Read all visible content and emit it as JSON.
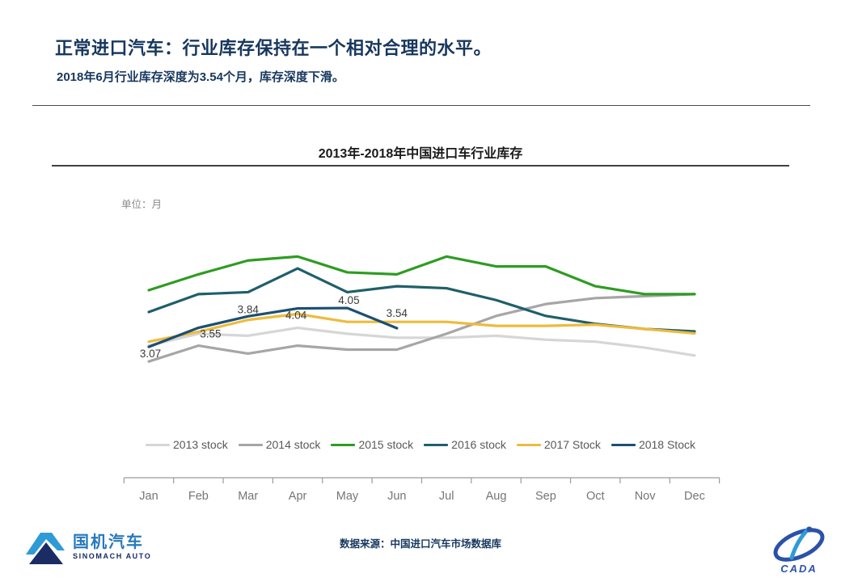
{
  "header": {
    "title": "正常进口汽车：行业库存保持在一个相对合理的水平。",
    "subtitle": "2018年6月行业库存深度为3.54个月，库存深度下滑。"
  },
  "chart_data": {
    "type": "line",
    "title": "2013年-2018年中国进口车行业库存",
    "unit_label": "单位：月",
    "categories": [
      "Jan",
      "Feb",
      "Mar",
      "Apr",
      "May",
      "Jun",
      "Jul",
      "Aug",
      "Sep",
      "Oct",
      "Nov",
      "Dec"
    ],
    "series": [
      {
        "name": "2013 stock",
        "color": "#D6D6D6",
        "values": [
          3.1,
          3.4,
          3.35,
          3.55,
          3.4,
          3.3,
          3.3,
          3.35,
          3.25,
          3.2,
          3.05,
          2.85
        ]
      },
      {
        "name": "2014 stock",
        "color": "#A6A6A6",
        "values": [
          2.7,
          3.1,
          2.9,
          3.1,
          3.0,
          3.0,
          3.4,
          3.85,
          4.15,
          4.3,
          4.35,
          4.4
        ]
      },
      {
        "name": "2015 stock",
        "color": "#2E9C22",
        "values": [
          4.5,
          4.9,
          5.25,
          5.35,
          4.95,
          4.9,
          5.35,
          5.1,
          5.1,
          4.6,
          4.4,
          4.4
        ]
      },
      {
        "name": "2016 stock",
        "color": "#1F5F6B",
        "values": [
          3.95,
          4.4,
          4.45,
          5.05,
          4.45,
          4.6,
          4.55,
          4.25,
          3.85,
          3.65,
          3.52,
          3.46
        ]
      },
      {
        "name": "2017 Stock",
        "color": "#EDBB3D",
        "values": [
          3.2,
          3.45,
          3.75,
          3.9,
          3.7,
          3.7,
          3.7,
          3.6,
          3.6,
          3.63,
          3.52,
          3.41
        ]
      },
      {
        "name": "2018 Stock",
        "color": "#1B4F72",
        "values": [
          3.07,
          3.55,
          3.84,
          4.04,
          4.05,
          3.54
        ],
        "data_labels": [
          "3.07",
          "3.55",
          "3.84",
          "4.04",
          "4.05",
          "3.54"
        ]
      }
    ],
    "ylim": [
      2.2,
      6.0
    ],
    "grid": false,
    "legend_position": "bottom",
    "x_axis_visible": true,
    "y_axis_visible": false
  },
  "footer": {
    "source": "数据来源：中国进口汽车市场数据库",
    "logo_left_cn": "国机汽车",
    "logo_left_en": "SINOMACH AUTO",
    "logo_right": "CADA"
  }
}
